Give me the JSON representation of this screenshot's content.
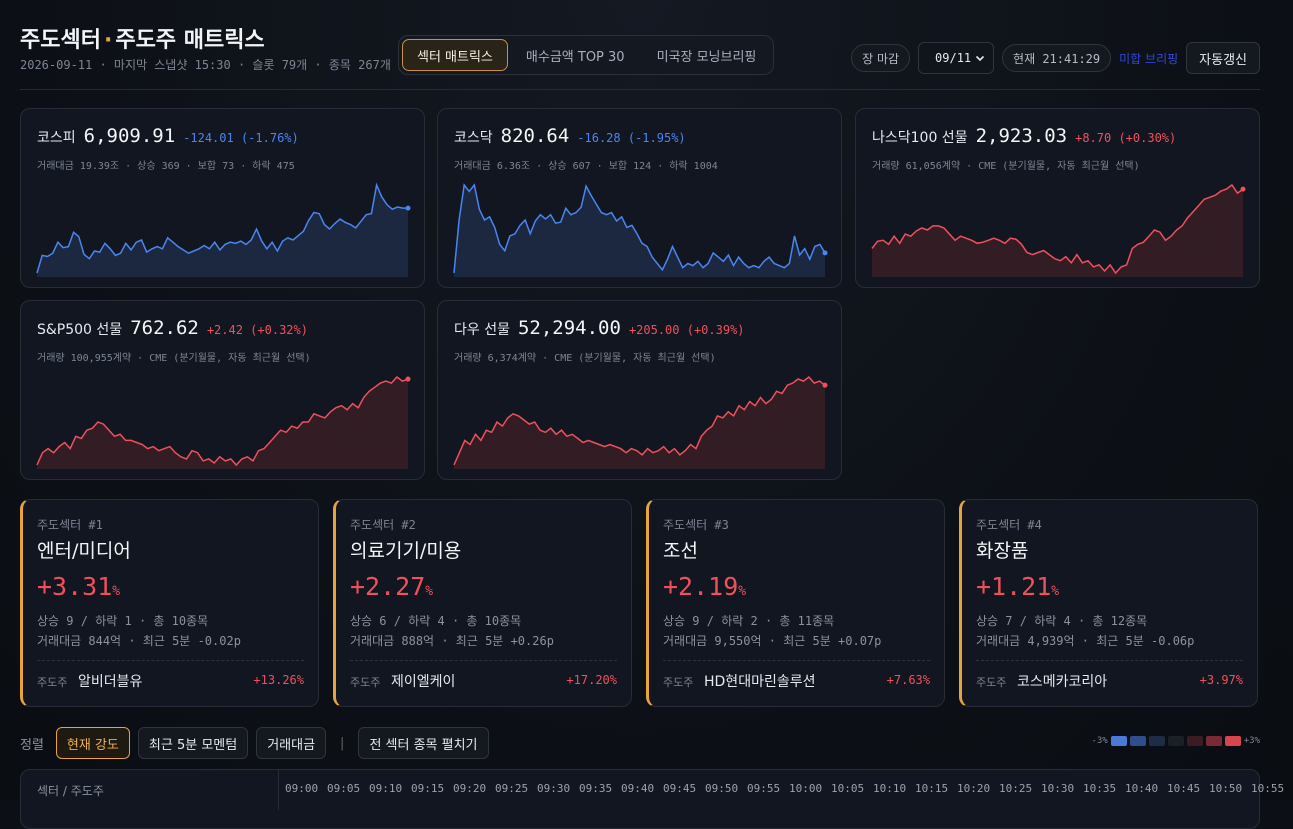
{
  "header": {
    "title_a": "주도섹터",
    "title_dot": "·",
    "title_b": "주도주 매트릭스",
    "subtitle": "2026-09-11 · 마지막 스냅샷 15:30 · 슬롯 79개 · 종목 267개",
    "tabs": [
      {
        "label": "섹터 매트릭스",
        "active": true
      },
      {
        "label": "매수금액 TOP 30",
        "active": false
      },
      {
        "label": "미국장 모닝브리핑",
        "active": false
      }
    ],
    "market_status": "장 마감",
    "date_select": "09/11",
    "current_time": "현재 21:41:29",
    "link_label": "미합 브리핑",
    "auto_refresh": "자동갱신"
  },
  "indices": [
    {
      "name": "코스피",
      "value": "6,909.91",
      "change": "-124.01 (-1.76%)",
      "direction": "down",
      "meta": "거래대금 19.39조 · 상승 369 · 보합 73 · 하락 475",
      "series": [
        8,
        24,
        23,
        26,
        36,
        31,
        32,
        45,
        41,
        25,
        21,
        28,
        27,
        35,
        30,
        24,
        26,
        35,
        29,
        36,
        38,
        27,
        30,
        32,
        30,
        40,
        36,
        32,
        29,
        26,
        28,
        30,
        33,
        30,
        36,
        29,
        34,
        36,
        35,
        37,
        34,
        38,
        48,
        37,
        30,
        36,
        28,
        37,
        40,
        38,
        42,
        46,
        56,
        63,
        62,
        52,
        48,
        53,
        57,
        54,
        52,
        49,
        55,
        61,
        62,
        88,
        77,
        70,
        66,
        68,
        67,
        67
      ],
      "color": "#4a86f0",
      "fill": "#1d2b47"
    },
    {
      "name": "코스닥",
      "value": "820.64",
      "change": "-16.28 (-1.95%)",
      "direction": "down",
      "meta": "거래대금 6.36조 · 상승 607 · 보합 124 · 하락 1004",
      "series": [
        5,
        55,
        88,
        82,
        88,
        65,
        55,
        58,
        48,
        32,
        26,
        40,
        42,
        50,
        55,
        42,
        54,
        60,
        56,
        60,
        52,
        53,
        66,
        60,
        62,
        67,
        87,
        78,
        70,
        62,
        60,
        62,
        54,
        58,
        48,
        50,
        42,
        33,
        30,
        20,
        14,
        8,
        18,
        30,
        20,
        10,
        14,
        12,
        16,
        10,
        14,
        24,
        20,
        16,
        22,
        12,
        20,
        14,
        10,
        12,
        10,
        16,
        20,
        14,
        12,
        10,
        14,
        40,
        22,
        28,
        18,
        30,
        32,
        24
      ],
      "color": "#4a86f0",
      "fill": "#1d2b47"
    },
    {
      "name": "나스닥100 선물",
      "value": "2,923.03",
      "change": "+8.70 (+0.30%)",
      "direction": "up",
      "meta": "거래량 61,056계약 · CME (분기월물, 자동 최근월 선택)",
      "series": [
        28,
        35,
        36,
        32,
        40,
        33,
        42,
        40,
        45,
        48,
        46,
        50,
        50,
        48,
        42,
        36,
        40,
        38,
        36,
        33,
        34,
        36,
        38,
        36,
        33,
        38,
        37,
        32,
        24,
        22,
        24,
        26,
        22,
        18,
        16,
        20,
        14,
        22,
        14,
        16,
        10,
        12,
        6,
        12,
        4,
        10,
        12,
        28,
        32,
        34,
        40,
        46,
        44,
        36,
        40,
        46,
        50,
        58,
        64,
        70,
        76,
        78,
        80,
        84,
        86,
        90,
        82,
        86
      ],
      "color": "#f0505c",
      "fill": "#3a1f26"
    },
    {
      "name": "S&P500 선물",
      "value": "762.62",
      "change": "+2.42 (+0.32%)",
      "direction": "up",
      "meta": "거래량 100,955계약 · CME (분기월물, 자동 최근월 선택)",
      "series": [
        6,
        18,
        22,
        18,
        24,
        28,
        22,
        34,
        32,
        40,
        42,
        48,
        46,
        40,
        34,
        36,
        30,
        30,
        28,
        26,
        22,
        24,
        20,
        22,
        24,
        18,
        14,
        12,
        20,
        18,
        10,
        12,
        8,
        14,
        10,
        12,
        6,
        12,
        14,
        10,
        20,
        22,
        28,
        34,
        40,
        38,
        44,
        42,
        48,
        48,
        56,
        54,
        52,
        58,
        62,
        64,
        60,
        66,
        62,
        72,
        78,
        82,
        86,
        88,
        86,
        92,
        88,
        90
      ],
      "color": "#f0505c",
      "fill": "#3a1f26"
    },
    {
      "name": "다우 선물",
      "value": "52,294.00",
      "change": "+205.00 (+0.39%)",
      "direction": "up",
      "meta": "거래량 6,374계약 · CME (분기월물, 자동 최근월 선택)",
      "series": [
        6,
        18,
        30,
        26,
        36,
        30,
        40,
        38,
        48,
        44,
        52,
        56,
        54,
        50,
        46,
        48,
        40,
        38,
        42,
        36,
        40,
        34,
        36,
        32,
        28,
        30,
        28,
        26,
        24,
        26,
        24,
        22,
        18,
        22,
        20,
        16,
        22,
        18,
        20,
        24,
        18,
        22,
        16,
        20,
        26,
        22,
        34,
        40,
        44,
        54,
        52,
        58,
        54,
        64,
        60,
        68,
        64,
        72,
        66,
        70,
        78,
        76,
        84,
        86,
        90,
        88,
        92,
        86,
        88,
        84
      ],
      "color": "#f0505c",
      "fill": "#3a1f26"
    }
  ],
  "sectors": [
    {
      "rank": "주도섹터 #1",
      "name": "엔터/미디어",
      "pct": "+3.31",
      "unit": "%",
      "line1": "상승 9 / 하락 1 · 총 10종목",
      "line2": "거래대금 844억 · 최근 5분 -0.02p",
      "lead_label": "주도주",
      "lead_name": "알비더블유",
      "lead_pct": "+13.26%"
    },
    {
      "rank": "주도섹터 #2",
      "name": "의료기기/미용",
      "pct": "+2.27",
      "unit": "%",
      "line1": "상승 6 / 하락 4 · 총 10종목",
      "line2": "거래대금 888억 · 최근 5분 +0.26p",
      "lead_label": "주도주",
      "lead_name": "제이엘케이",
      "lead_pct": "+17.20%"
    },
    {
      "rank": "주도섹터 #3",
      "name": "조선",
      "pct": "+2.19",
      "unit": "%",
      "line1": "상승 9 / 하락 2 · 총 11종목",
      "line2": "거래대금 9,550억 · 최근 5분 +0.07p",
      "lead_label": "주도주",
      "lead_name": "HD현대마린솔루션",
      "lead_pct": "+7.63%"
    },
    {
      "rank": "주도섹터 #4",
      "name": "화장품",
      "pct": "+1.21",
      "unit": "%",
      "line1": "상승 7 / 하락 4 · 총 12종목",
      "line2": "거래대금 4,939억 · 최근 5분 -0.06p",
      "lead_label": "주도주",
      "lead_name": "코스메카코리아",
      "lead_pct": "+3.97%"
    }
  ],
  "sortbar": {
    "label": "정렬",
    "options": [
      {
        "label": "현재 강도",
        "active": true
      },
      {
        "label": "최근 5분 모멘텀",
        "active": false
      },
      {
        "label": "거래대금",
        "active": false
      }
    ],
    "divider": "|",
    "expand_all": "전 섹터 종목 펼치기",
    "legend_min": "-3%",
    "legend_max": "+3%",
    "legend_colors": [
      "#4a7ad8",
      "#2e4e8e",
      "#1f2c48",
      "#1a1f28",
      "#3a1c22",
      "#7a2a34",
      "#d8454f"
    ]
  },
  "matrix": {
    "corner": "섹터 / 주도주",
    "times": [
      "09:00",
      "09:05",
      "09:10",
      "09:15",
      "09:20",
      "09:25",
      "09:30",
      "09:35",
      "09:40",
      "09:45",
      "09:50",
      "09:55",
      "10:00",
      "10:05",
      "10:10",
      "10:15",
      "10:20",
      "10:25",
      "10:30",
      "10:35",
      "10:40",
      "10:45",
      "10:50",
      "10:55"
    ]
  }
}
